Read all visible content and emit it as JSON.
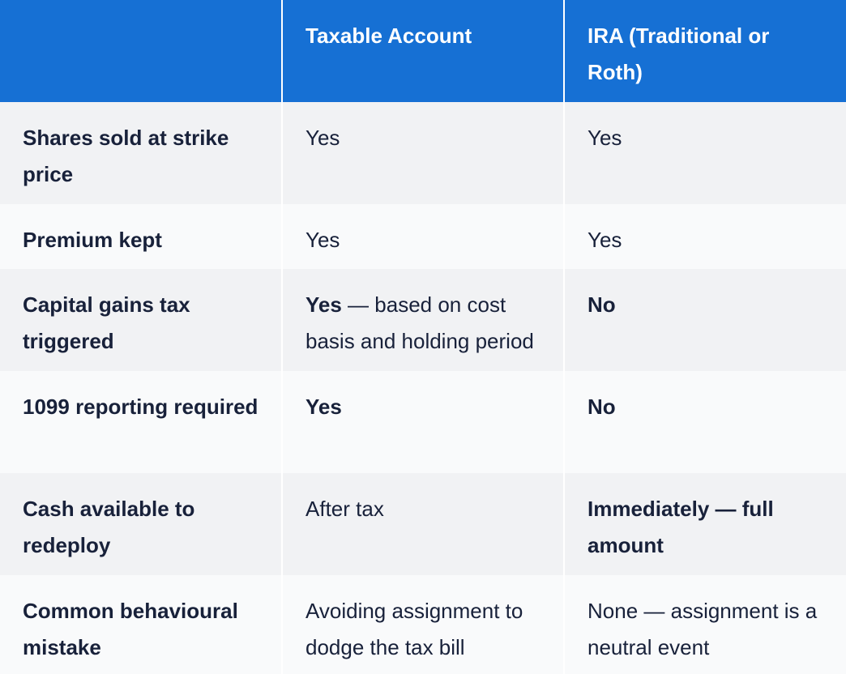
{
  "table": {
    "header": [
      "",
      "Taxable Account",
      "IRA (Traditional or Roth)"
    ],
    "rows": [
      {
        "label": "Shares sold at strike price",
        "cells": [
          [
            {
              "text": "Yes",
              "bold": false
            }
          ],
          [
            {
              "text": "Yes",
              "bold": false
            }
          ]
        ]
      },
      {
        "label": "Premium kept",
        "cells": [
          [
            {
              "text": "Yes",
              "bold": false
            }
          ],
          [
            {
              "text": "Yes",
              "bold": false
            }
          ]
        ]
      },
      {
        "label": "Capital gains tax triggered",
        "cells": [
          [
            {
              "text": "Yes",
              "bold": true
            },
            {
              "text": " — based on cost basis and holding period",
              "bold": false
            }
          ],
          [
            {
              "text": "No",
              "bold": true
            }
          ]
        ]
      },
      {
        "label": "1099 reporting required",
        "cells": [
          [
            {
              "text": "Yes",
              "bold": true
            }
          ],
          [
            {
              "text": "No",
              "bold": true
            }
          ]
        ]
      },
      {
        "label": "Cash available to redeploy",
        "cells": [
          [
            {
              "text": "After tax",
              "bold": false
            }
          ],
          [
            {
              "text": "Immediately — full amount",
              "bold": true
            }
          ]
        ]
      },
      {
        "label": "Common behavioural mistake",
        "cells": [
          [
            {
              "text": "Avoiding assignment to dodge the tax bill",
              "bold": false
            }
          ],
          [
            {
              "text": "None — assignment is a neutral event",
              "bold": false
            }
          ]
        ]
      }
    ]
  }
}
